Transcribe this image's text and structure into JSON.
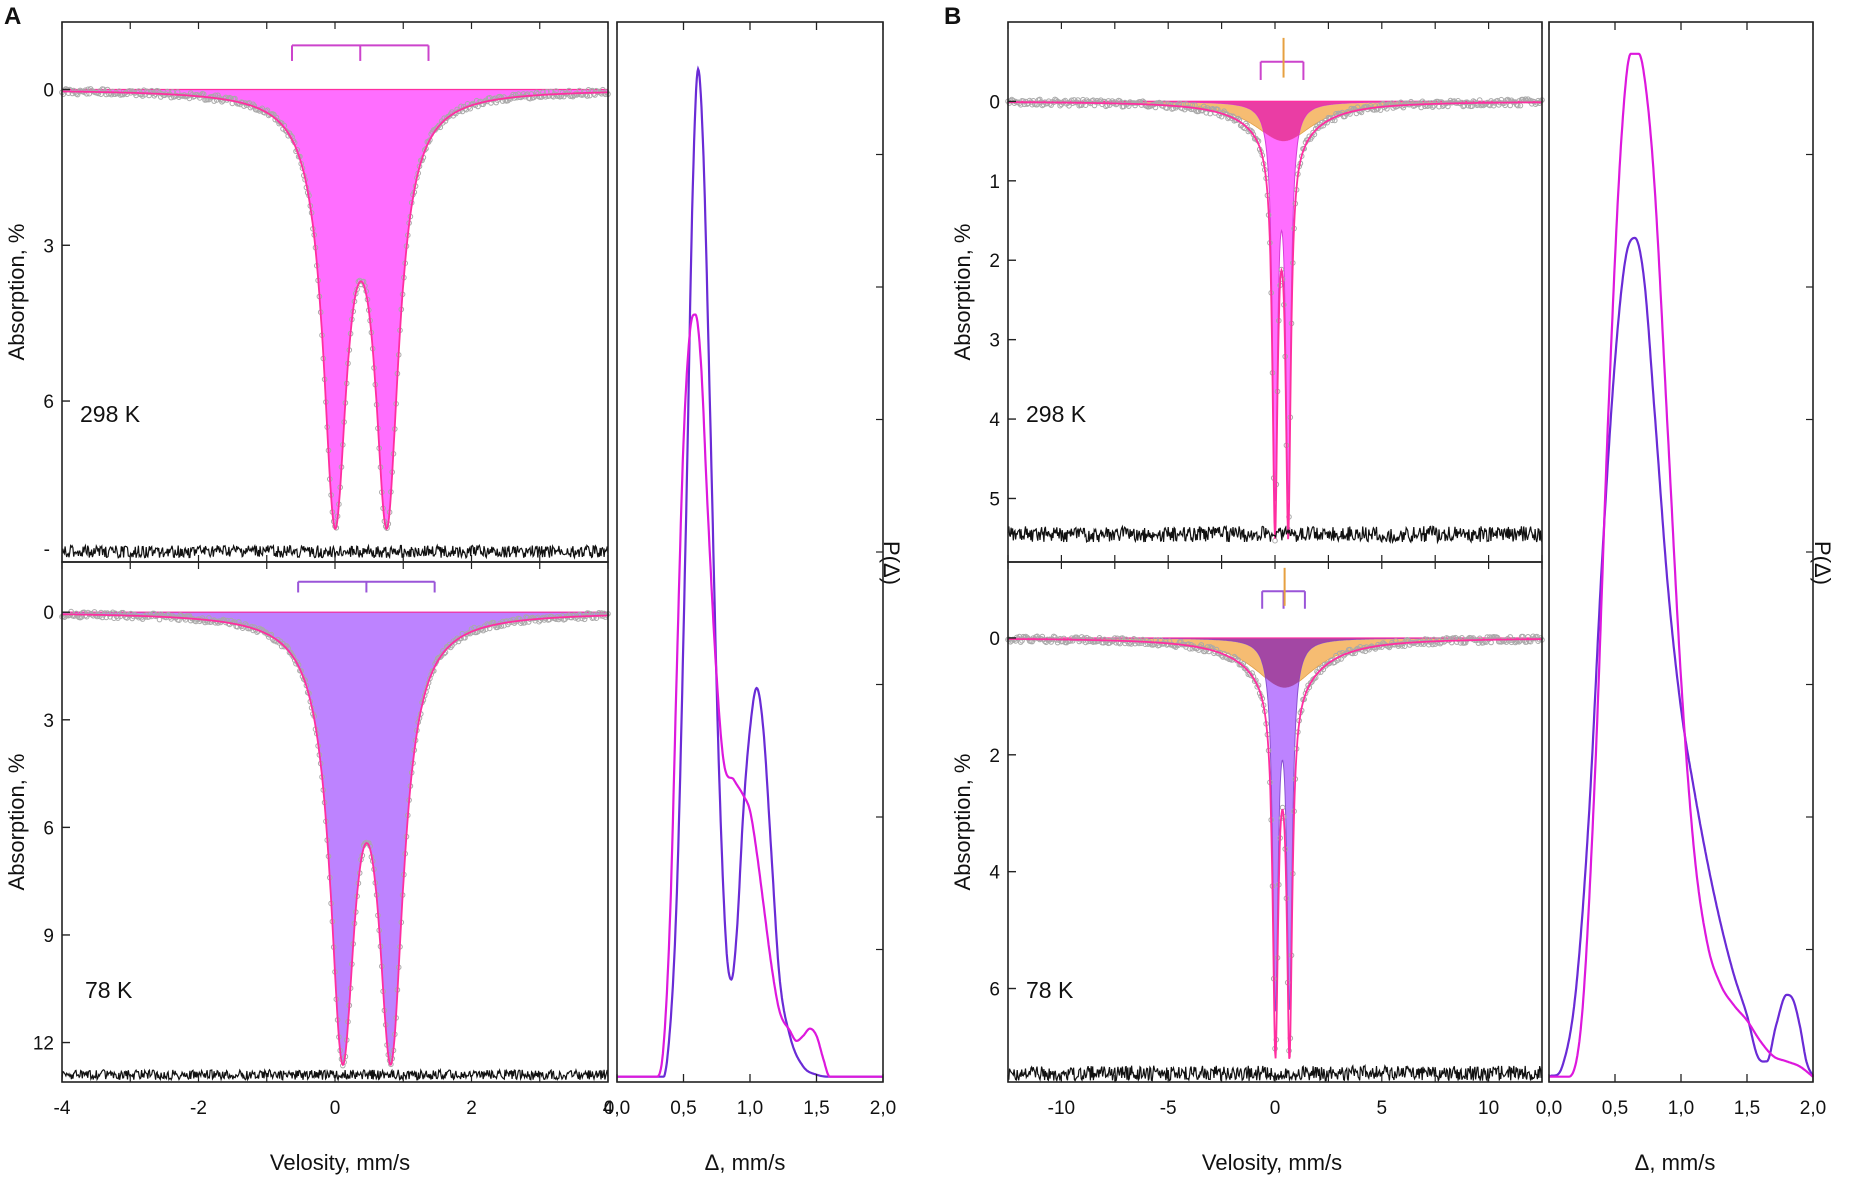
{
  "figure": {
    "panels": [
      {
        "letter": "A",
        "spectra_xlabel": "Velosity, mm/s",
        "distribution_xlabel": "Δ, mm/s",
        "distribution_ylabel": "P(Δ)"
      },
      {
        "letter": "B",
        "spectra_xlabel": "Velosity, mm/s",
        "distribution_xlabel": "Δ, mm/s",
        "distribution_ylabel": "P(Δ)"
      }
    ]
  },
  "chart_data": [
    {
      "id": "A-298K",
      "type": "line",
      "panel": "A",
      "label": "298 K",
      "xlabel": "",
      "ylabel": "Absorption, %",
      "xlim": [
        -4,
        4
      ],
      "ylim": [
        -1.3,
        9.1
      ],
      "y_inverted": true,
      "yticks": [
        0,
        3,
        6
      ],
      "yticklabels": [
        "0",
        "3",
        "6"
      ],
      "extra_tick_label": {
        "value": 8.9,
        "text": "-"
      },
      "series": [
        {
          "name": "doublet component",
          "kind": "doublet",
          "lines": [
            0.0,
            0.76
          ],
          "depths": [
            7.9,
            7.9
          ],
          "width": 0.42,
          "fill": "#ff66ff",
          "stroke": "#d63fd6"
        },
        {
          "name": "fit",
          "kind": "fit-line",
          "color": "#ff2ea0"
        },
        {
          "name": "data",
          "kind": "points",
          "color": "#a9a9a9"
        },
        {
          "name": "residual",
          "kind": "residual",
          "offset": 8.9,
          "amplitude": 0.12,
          "color": "#111111"
        }
      ],
      "markers": {
        "color": "#cc44cc",
        "bar_level": -0.85,
        "tick_length": 0.3,
        "center": 0.37,
        "split": 1.0,
        "center_tick": true,
        "side_ticks": true
      }
    },
    {
      "id": "A-78K",
      "type": "line",
      "panel": "A",
      "label": "78 K",
      "xlabel": "Velosity, mm/s",
      "ylabel": "Absorption, %",
      "xlim": [
        -4,
        4
      ],
      "ylim": [
        -1.4,
        13.1
      ],
      "y_inverted": true,
      "yticks": [
        0,
        3,
        6,
        9,
        12
      ],
      "yticklabels": [
        "0",
        "3",
        "6",
        "9",
        "12"
      ],
      "xticks": [
        -4,
        -2,
        0,
        2,
        4
      ],
      "xticklabels": [
        "-4",
        "-2",
        "0",
        "2",
        "4"
      ],
      "series": [
        {
          "name": "doublet component",
          "kind": "doublet",
          "lines": [
            0.11,
            0.82
          ],
          "depths": [
            11.6,
            11.6
          ],
          "width": 0.44,
          "fill": "#b97cff",
          "stroke": "#8a52d0"
        },
        {
          "name": "fit",
          "kind": "fit-line",
          "color": "#ff2ea0"
        },
        {
          "name": "data",
          "kind": "points",
          "color": "#a9a9a9"
        },
        {
          "name": "residual",
          "kind": "residual",
          "offset": 12.9,
          "amplitude": 0.14,
          "color": "#111111"
        }
      ],
      "markers": {
        "color": "#9a55d8",
        "bar_level": -0.85,
        "tick_length": 0.3,
        "center": 0.46,
        "split": 1.0,
        "center_tick": true,
        "side_ticks": true
      }
    },
    {
      "id": "A-distribution",
      "type": "line",
      "panel": "A",
      "xlabel": "Δ, mm/s",
      "ylabel": "P(Δ)",
      "xlim": [
        0.0,
        2.0
      ],
      "ylim": [
        0,
        1.0
      ],
      "xticks": [
        0,
        0.5,
        1.0,
        1.5,
        2.0
      ],
      "xticklabels": [
        "0,0",
        "0,5",
        "1,0",
        "1,5",
        "2,0"
      ],
      "series": [
        {
          "name": "78 K",
          "color": "#6a2bd6",
          "x": [
            0.0,
            0.3,
            0.38,
            0.45,
            0.52,
            0.57,
            0.61,
            0.65,
            0.7,
            0.76,
            0.82,
            0.86,
            0.9,
            0.95,
            1.0,
            1.05,
            1.1,
            1.16,
            1.22,
            1.3,
            1.4,
            1.5,
            1.6,
            2.0
          ],
          "y": [
            0.0,
            0.0,
            0.02,
            0.18,
            0.55,
            0.87,
            0.985,
            0.9,
            0.65,
            0.33,
            0.13,
            0.095,
            0.14,
            0.26,
            0.34,
            0.38,
            0.34,
            0.22,
            0.1,
            0.04,
            0.01,
            0.002,
            0.0,
            0.0
          ]
        },
        {
          "name": "298 K",
          "color": "#dd18dd",
          "x": [
            0.0,
            0.3,
            0.35,
            0.4,
            0.45,
            0.5,
            0.55,
            0.59,
            0.63,
            0.68,
            0.74,
            0.8,
            0.88,
            0.95,
            1.0,
            1.05,
            1.1,
            1.16,
            1.22,
            1.3,
            1.35,
            1.4,
            1.45,
            1.5,
            1.55,
            1.6,
            2.0
          ],
          "y": [
            0.0,
            0.0,
            0.03,
            0.16,
            0.4,
            0.62,
            0.73,
            0.745,
            0.7,
            0.56,
            0.41,
            0.31,
            0.29,
            0.275,
            0.26,
            0.22,
            0.17,
            0.11,
            0.065,
            0.045,
            0.035,
            0.04,
            0.047,
            0.04,
            0.018,
            0.0,
            0.0
          ]
        }
      ]
    },
    {
      "id": "B-298K",
      "type": "line",
      "panel": "B",
      "label": "298 K",
      "xlabel": "",
      "ylabel": "Absorption, %",
      "xlim": [
        -12.5,
        12.5
      ],
      "ylim": [
        -1.0,
        5.8
      ],
      "y_inverted": true,
      "yticks": [
        0,
        1,
        2,
        3,
        4,
        5
      ],
      "yticklabels": [
        "0",
        "1",
        "2",
        "3",
        "4",
        "5"
      ],
      "series": [
        {
          "name": "broad component",
          "kind": "singlet",
          "lines": [
            0.4
          ],
          "depths": [
            0.5
          ],
          "width": 3.4,
          "fill": "#f5b86a",
          "stroke": "#e0a04a"
        },
        {
          "name": "doublet component",
          "kind": "doublet",
          "lines": [
            0.0,
            0.62
          ],
          "depths": [
            4.8,
            4.8
          ],
          "width": 0.28,
          "fill": "#ff66ff",
          "stroke": "#d63fd6"
        },
        {
          "name": "broad overlap",
          "kind": "overlap",
          "fill": "#e8389a"
        },
        {
          "name": "fit",
          "kind": "fit-line",
          "color": "#ff2ea0"
        },
        {
          "name": "data",
          "kind": "points",
          "color": "#a9a9a9"
        },
        {
          "name": "residual",
          "kind": "residual",
          "offset": 5.45,
          "amplitude": 0.1,
          "color": "#111111"
        }
      ],
      "markers": {
        "color": "#cc44cc",
        "bar_level": -0.5,
        "tick_length": 0.23,
        "center": 0.33,
        "split": 1.0,
        "center_tick": false,
        "side_ticks": true,
        "vertical_marker": {
          "at": 0.4,
          "color": "#e6a040",
          "from": -0.8,
          "to": -0.3
        }
      }
    },
    {
      "id": "B-78K",
      "type": "line",
      "panel": "B",
      "label": "78 K",
      "xlabel": "Velosity, mm/s",
      "ylabel": "Absorption, %",
      "xlim": [
        -12.5,
        12.5
      ],
      "ylim": [
        -1.3,
        7.6
      ],
      "y_inverted": true,
      "yticks": [
        0,
        2,
        4,
        6
      ],
      "yticklabels": [
        "0",
        "2",
        "4",
        "6"
      ],
      "xticks": [
        -10,
        -5,
        0,
        5,
        10
      ],
      "xticklabels": [
        "-10",
        "-5",
        "0",
        "5",
        "10"
      ],
      "series": [
        {
          "name": "broad component",
          "kind": "singlet",
          "lines": [
            0.45
          ],
          "depths": [
            0.85
          ],
          "width": 3.6,
          "fill": "#f5b86a",
          "stroke": "#e0a04a"
        },
        {
          "name": "doublet component",
          "kind": "doublet",
          "lines": [
            0.02,
            0.68
          ],
          "depths": [
            6.1,
            6.1
          ],
          "width": 0.3,
          "fill": "#b97cff",
          "stroke": "#8a52d0"
        },
        {
          "name": "broad overlap",
          "kind": "overlap",
          "fill": "#a0409a"
        },
        {
          "name": "fit",
          "kind": "fit-line",
          "color": "#ff2ea0"
        },
        {
          "name": "data",
          "kind": "points",
          "color": "#a9a9a9"
        },
        {
          "name": "residual",
          "kind": "residual",
          "offset": 7.45,
          "amplitude": 0.13,
          "color": "#111111"
        }
      ],
      "markers": {
        "color": "#9a55d8",
        "bar_level": -0.8,
        "tick_length": 0.3,
        "center": 0.4,
        "split": 1.0,
        "center_tick": true,
        "side_ticks": true,
        "vertical_marker": {
          "at": 0.45,
          "color": "#e6a040",
          "from": -1.2,
          "to": -0.55
        }
      }
    },
    {
      "id": "B-distribution",
      "type": "line",
      "panel": "B",
      "xlabel": "Δ, mm/s",
      "ylabel": "P(Δ)",
      "xlim": [
        0.0,
        2.0
      ],
      "ylim": [
        0,
        1.0
      ],
      "xticks": [
        0,
        0.5,
        1.0,
        1.5,
        2.0
      ],
      "xticklabels": [
        "0,0",
        "0,5",
        "1,0",
        "1,5",
        "2,0"
      ],
      "series": [
        {
          "name": "78 K",
          "color": "#6a2bd6",
          "x": [
            0.0,
            0.1,
            0.2,
            0.3,
            0.4,
            0.5,
            0.58,
            0.65,
            0.72,
            0.8,
            0.9,
            1.0,
            1.1,
            1.2,
            1.3,
            1.4,
            1.5,
            1.58,
            1.65,
            1.72,
            1.8,
            1.85,
            1.9,
            1.95,
            2.0
          ],
          "y": [
            0.0,
            0.01,
            0.08,
            0.25,
            0.5,
            0.7,
            0.8,
            0.82,
            0.78,
            0.65,
            0.48,
            0.36,
            0.28,
            0.21,
            0.15,
            0.1,
            0.06,
            0.02,
            0.015,
            0.05,
            0.08,
            0.075,
            0.05,
            0.015,
            0.0
          ]
        },
        {
          "name": "298 K",
          "color": "#dd18dd",
          "x": [
            0.0,
            0.15,
            0.25,
            0.35,
            0.45,
            0.55,
            0.62,
            0.68,
            0.74,
            0.8,
            0.9,
            1.0,
            1.1,
            1.2,
            1.3,
            1.4,
            1.5,
            1.6,
            1.7,
            1.8,
            1.9,
            2.0
          ],
          "y": [
            0.0,
            0.0,
            0.06,
            0.3,
            0.65,
            0.92,
            1.0,
            1.0,
            0.96,
            0.87,
            0.63,
            0.39,
            0.22,
            0.13,
            0.09,
            0.07,
            0.055,
            0.035,
            0.02,
            0.015,
            0.01,
            0.0
          ]
        }
      ]
    }
  ]
}
